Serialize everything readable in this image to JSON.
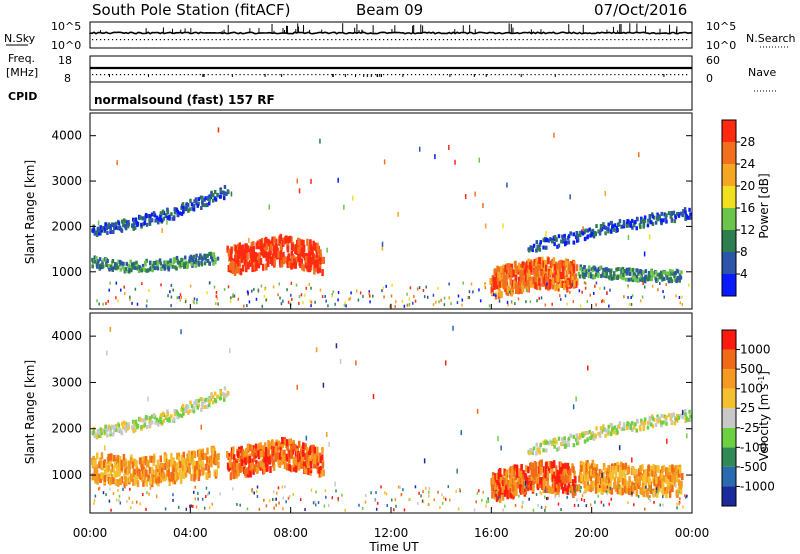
{
  "header": {
    "title": "South Pole Station (fitACF)",
    "beam": "Beam 09",
    "date": "07/Oct/2016"
  },
  "noise_panel": {
    "left_label": "N.Sky",
    "right_label": "N.Search",
    "left_ticks": [
      "10^5",
      "10^0"
    ],
    "right_ticks": [
      "10^5",
      "10^0"
    ]
  },
  "freq_panel": {
    "left_label_1": "Freq.",
    "left_label_2": "[MHz]",
    "right_label": "Nave",
    "left_ticks": [
      "18",
      "8"
    ],
    "right_ticks": [
      "60",
      "0"
    ]
  },
  "cpid": {
    "label": "CPID",
    "text": "normalsound (fast) 157 RF"
  },
  "x_axis": {
    "label": "Time UT",
    "ticks": [
      "00:00",
      "04:00",
      "08:00",
      "12:00",
      "16:00",
      "20:00",
      "00:00"
    ]
  },
  "chart_data": [
    {
      "type": "heatmap",
      "title": "",
      "ylabel": "Slant Range [km]",
      "xlabel": "Time UT",
      "x_range": [
        "00:00",
        "24:00"
      ],
      "ylim": [
        180,
        4500
      ],
      "y_ticks": [
        1000,
        2000,
        3000,
        4000
      ],
      "colorbar": {
        "label": "Power [dB]",
        "ticks": [
          "4",
          "8",
          "12",
          "16",
          "20",
          "24",
          "28"
        ],
        "colors": [
          "#0a1aff",
          "#2c54a8",
          "#2e7d4e",
          "#6cc44a",
          "#f0e020",
          "#f5a623",
          "#f07020",
          "#ff2a10"
        ]
      },
      "bands": [
        {
          "name": "band-1",
          "t": [
            0.0,
            1.5,
            3.0,
            4.5,
            5.4
          ],
          "r": [
            1950,
            2080,
            2280,
            2600,
            2800
          ],
          "level": 1
        },
        {
          "name": "band-2",
          "t": [
            17.5,
            19.0,
            20.5,
            22.0,
            24.0
          ],
          "r": [
            1600,
            1750,
            2000,
            2150,
            2350
          ],
          "level": 1
        },
        {
          "name": "band-3",
          "t": [
            0.0,
            1.5,
            3.0,
            5.0
          ],
          "r": [
            1250,
            1150,
            1200,
            1350
          ],
          "level": 2
        },
        {
          "name": "band-4",
          "t": [
            5.5,
            6.5,
            7.5,
            8.5,
            9.2
          ],
          "r": [
            1300,
            1400,
            1550,
            1450,
            1350
          ],
          "level": 7
        },
        {
          "name": "band-5",
          "t": [
            16.0,
            17.0,
            18.0,
            19.0,
            19.3
          ],
          "r": [
            800,
            950,
            1050,
            1000,
            950
          ],
          "level": 6
        },
        {
          "name": "band-6",
          "t": [
            19.5,
            21.0,
            22.0,
            23.5
          ],
          "r": [
            1050,
            1000,
            950,
            950
          ],
          "level": 2
        }
      ]
    },
    {
      "type": "heatmap",
      "title": "",
      "ylabel": "Slant Range [km]",
      "xlabel": "Time UT",
      "x_range": [
        "00:00",
        "24:00"
      ],
      "ylim": [
        180,
        4500
      ],
      "y_ticks": [
        1000,
        2000,
        3000,
        4000
      ],
      "colorbar": {
        "label": "Velocity [m s^-1]",
        "ticks": [
          "1000",
          "500",
          "100",
          "25",
          "-25",
          "-100",
          "-500",
          "-1000"
        ],
        "colors": [
          "#1a2a9a",
          "#2a6ab0",
          "#2f8a56",
          "#6cd040",
          "#c8c8c8",
          "#f5c030",
          "#f59a20",
          "#f06a18",
          "#ff1a10"
        ]
      },
      "bands": [
        {
          "name": "band-1",
          "t": [
            0.0,
            1.5,
            3.0,
            4.5,
            5.4
          ],
          "r": [
            1950,
            2080,
            2280,
            2600,
            2800
          ],
          "level": 4
        },
        {
          "name": "band-2",
          "t": [
            17.5,
            19.0,
            20.5,
            22.0,
            24.0
          ],
          "r": [
            1600,
            1750,
            2000,
            2150,
            2350
          ],
          "level": 4
        },
        {
          "name": "band-3",
          "t": [
            0.0,
            1.5,
            3.0,
            5.0
          ],
          "r": [
            1250,
            1150,
            1200,
            1350
          ],
          "level": 6
        },
        {
          "name": "band-4",
          "t": [
            5.5,
            6.5,
            7.5,
            8.5,
            9.2
          ],
          "r": [
            1300,
            1400,
            1550,
            1450,
            1350
          ],
          "level": 7
        },
        {
          "name": "band-5",
          "t": [
            16.0,
            17.0,
            18.0,
            19.0,
            19.3
          ],
          "r": [
            800,
            950,
            1050,
            1000,
            950
          ],
          "level": 7
        },
        {
          "name": "band-6",
          "t": [
            19.5,
            21.0,
            22.0,
            23.5
          ],
          "r": [
            1050,
            1000,
            950,
            950
          ],
          "level": 6
        }
      ]
    }
  ]
}
